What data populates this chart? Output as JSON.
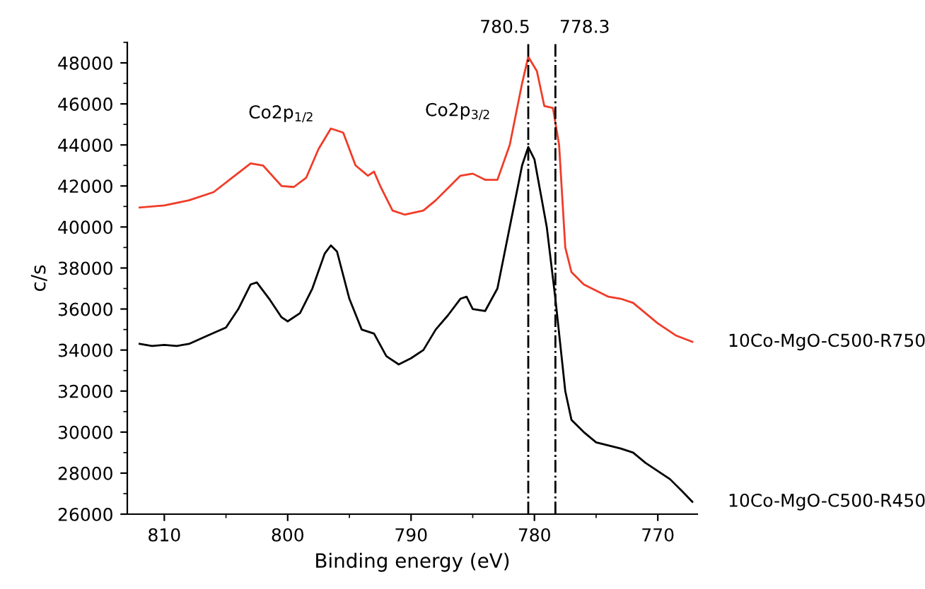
{
  "chart_data": {
    "type": "line",
    "xlabel": "Binding energy (eV)",
    "ylabel": "c/s",
    "xlim": [
      813,
      766.8
    ],
    "xticks": [
      810,
      800,
      790,
      780,
      770
    ],
    "ylim": [
      26000,
      49000
    ],
    "yticks": [
      26000,
      28000,
      30000,
      32000,
      34000,
      36000,
      38000,
      40000,
      42000,
      44000,
      46000,
      48000
    ],
    "grid": false,
    "legend": false,
    "marker": "none",
    "line_style": "solid",
    "series": [
      {
        "name": "10Co-MgO-C500-R750",
        "color": "#f03c28",
        "x": [
          812,
          810,
          808,
          806,
          804.5,
          803,
          802,
          800.5,
          799.5,
          798.5,
          797.5,
          796.5,
          795.5,
          794.5,
          793.5,
          793,
          792.5,
          791.5,
          790.5,
          789,
          788,
          787,
          786,
          785,
          784,
          783,
          782,
          781,
          780.5,
          779.8,
          779.2,
          778.5,
          778,
          777.5,
          777,
          776,
          775,
          774,
          773,
          772,
          771,
          770,
          768.5,
          767.2
        ],
        "values": [
          40950,
          41050,
          41300,
          41700,
          42400,
          43100,
          43000,
          42000,
          41950,
          42400,
          43800,
          44800,
          44600,
          43000,
          42500,
          42700,
          42000,
          40800,
          40600,
          40800,
          41300,
          41900,
          42500,
          42600,
          42300,
          42300,
          44000,
          47000,
          48300,
          47600,
          45900,
          45800,
          44000,
          39000,
          37800,
          37200,
          36900,
          36600,
          36500,
          36300,
          35800,
          35300,
          34700,
          34400
        ]
      },
      {
        "name": "10Co-MgO-C500-R450",
        "color": "#000000",
        "x": [
          812,
          811,
          810,
          809,
          808,
          806.5,
          805,
          804,
          803,
          802.5,
          801.5,
          800.5,
          800,
          799,
          798,
          797,
          796.5,
          796,
          795,
          794,
          793,
          792,
          791,
          790,
          789,
          788,
          787,
          786,
          785.5,
          785,
          784,
          783,
          782,
          781,
          780.5,
          780,
          779,
          778.3,
          777.5,
          777,
          776,
          775,
          773,
          772,
          771,
          769,
          768,
          767.2
        ],
        "values": [
          34300,
          34200,
          34250,
          34200,
          34300,
          34700,
          35100,
          36000,
          37200,
          37300,
          36500,
          35600,
          35400,
          35800,
          37000,
          38700,
          39100,
          38800,
          36500,
          35000,
          34800,
          33700,
          33300,
          33600,
          34000,
          35000,
          35700,
          36500,
          36600,
          36000,
          35900,
          37000,
          40000,
          43000,
          43900,
          43300,
          40000,
          36500,
          32000,
          30600,
          30000,
          29500,
          29200,
          29000,
          28500,
          27700,
          27100,
          26600
        ]
      }
    ],
    "ref_lines": [
      {
        "axis": "x",
        "value": 780.5,
        "label": "780.5",
        "color": "#000000"
      },
      {
        "axis": "x",
        "value": 778.3,
        "label": "778.3",
        "color": "#000000"
      }
    ],
    "annotations": [
      "Co2p$_{1/2}$",
      "Co2p$_{3/2}$"
    ]
  }
}
